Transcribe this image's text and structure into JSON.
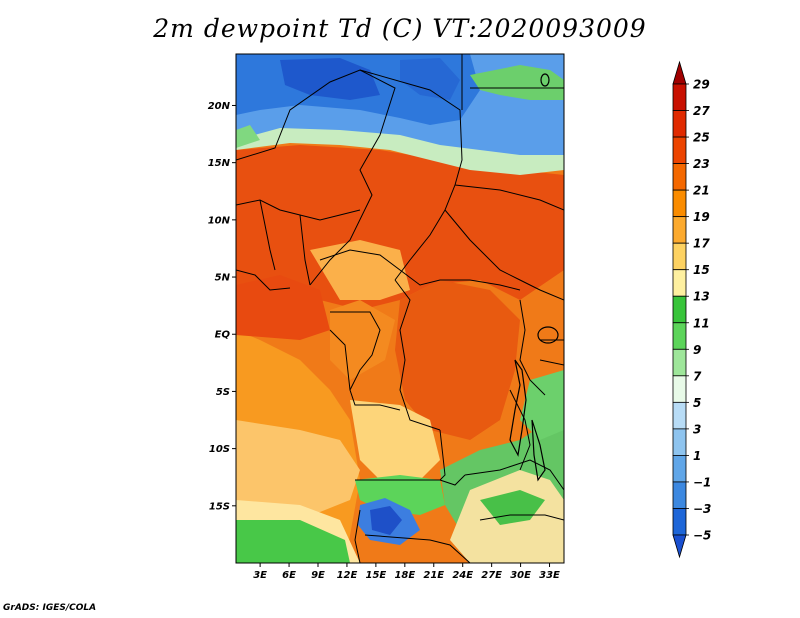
{
  "title": "2m dewpoint Td (C) VT:2020093009",
  "credit": "GrADS: IGES/COLA",
  "lat_labels": [
    "20N",
    "15N",
    "10N",
    "5N",
    "EQ",
    "5S",
    "10S",
    "15S"
  ],
  "lat_values": [
    20,
    15,
    10,
    5,
    0,
    -5,
    -10,
    -15
  ],
  "lon_labels": [
    "3E",
    "6E",
    "9E",
    "12E",
    "15E",
    "18E",
    "21E",
    "24E",
    "27E",
    "30E",
    "33E"
  ],
  "lon_values": [
    3,
    6,
    9,
    12,
    15,
    18,
    21,
    24,
    27,
    30,
    33
  ],
  "map_extent": {
    "lon": [
      0.5,
      34.5
    ],
    "lat": [
      -20,
      24.5
    ]
  },
  "colorbar": {
    "levels": [
      "29",
      "27",
      "25",
      "23",
      "21",
      "19",
      "17",
      "15",
      "13",
      "11",
      "9",
      "7",
      "5",
      "3",
      "1",
      "−1",
      "−3",
      "−5"
    ],
    "colors": [
      "#a00000",
      "#c81000",
      "#e02a00",
      "#ec4400",
      "#f46800",
      "#fa8c00",
      "#fcaa2e",
      "#fdd262",
      "#fef0a0",
      "#38c43a",
      "#5cd45a",
      "#9ee69a",
      "#e8fae8",
      "#b8dcf6",
      "#8ec4ef",
      "#60a6e8",
      "#3c88e0",
      "#1e66d8",
      "#1a50d0"
    ]
  }
}
